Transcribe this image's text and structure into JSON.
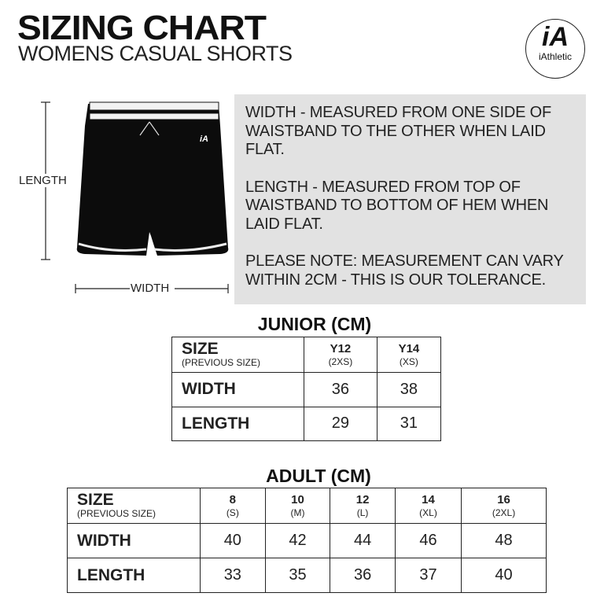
{
  "header": {
    "title": "SIZING CHART",
    "subtitle": "WOMENS CASUAL SHORTS"
  },
  "logo": {
    "mark": "iA",
    "brand": "iAthletic"
  },
  "diagram": {
    "length_label": "LENGTH",
    "width_label": "WIDTH"
  },
  "info": {
    "width_note": "WIDTH - MEASURED FROM ONE SIDE OF WAISTBAND TO THE OTHER WHEN LAID FLAT.",
    "length_note": "LENGTH - MEASURED FROM TOP OF WAISTBAND TO BOTTOM OF HEM WHEN LAID FLAT.",
    "tolerance_note": "PLEASE NOTE: MEASUREMENT CAN VARY WITHIN 2CM - THIS IS OUR TOLERANCE."
  },
  "junior": {
    "title": "JUNIOR (CM)",
    "size_label": "SIZE",
    "prev_label": "(PREVIOUS SIZE)",
    "sizes": [
      {
        "size": "Y12",
        "prev": "(2XS)"
      },
      {
        "size": "Y14",
        "prev": "(XS)"
      }
    ],
    "rows": [
      {
        "label": "WIDTH",
        "values": [
          "36",
          "38"
        ]
      },
      {
        "label": "LENGTH",
        "values": [
          "29",
          "31"
        ]
      }
    ]
  },
  "adult": {
    "title": "ADULT (CM)",
    "size_label": "SIZE",
    "prev_label": "(PREVIOUS SIZE)",
    "sizes": [
      {
        "size": "8",
        "prev": "(S)"
      },
      {
        "size": "10",
        "prev": "(M)"
      },
      {
        "size": "12",
        "prev": "(L)"
      },
      {
        "size": "14",
        "prev": "(XL)"
      },
      {
        "size": "16",
        "prev": "(2XL)"
      }
    ],
    "rows": [
      {
        "label": "WIDTH",
        "values": [
          "40",
          "42",
          "44",
          "46",
          "48"
        ]
      },
      {
        "label": "LENGTH",
        "values": [
          "33",
          "35",
          "36",
          "37",
          "40"
        ]
      }
    ]
  }
}
